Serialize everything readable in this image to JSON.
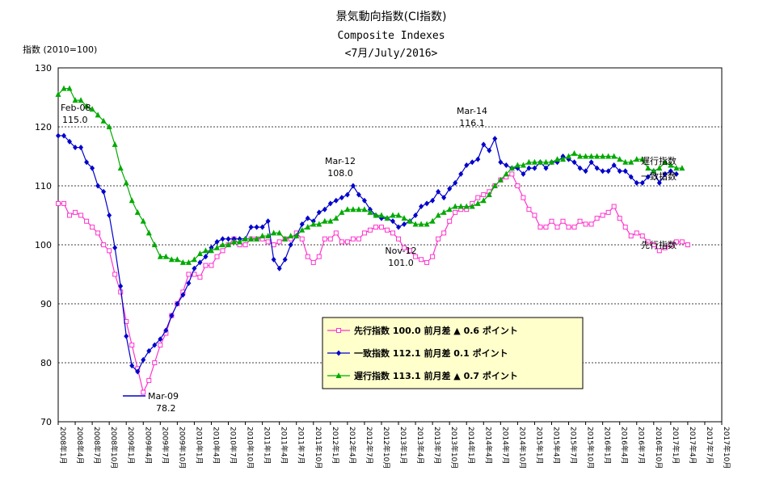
{
  "title": {
    "line1": "景気動向指数(CI指数)",
    "line2": "Composite Indexes",
    "line3": "<7月/July/2016>"
  },
  "chart_data": {
    "type": "line",
    "ylabel": "指数 (2010=100)",
    "ylim": [
      70,
      130
    ],
    "yticks": [
      70,
      80,
      90,
      100,
      110,
      120,
      130
    ],
    "grid": "dotted horizontal at 80, 90, 100, 110, 120",
    "x_start": "2008年1月",
    "x_end": "2017年10月",
    "xtick_labels": [
      "2008年1月",
      "2008年4月",
      "2008年7月",
      "2008年10月",
      "2009年1月",
      "2009年4月",
      "2009年7月",
      "2009年10月",
      "2010年1月",
      "2010年4月",
      "2010年7月",
      "2010年10月",
      "2011年1月",
      "2011年4月",
      "2011年7月",
      "2011年10月",
      "2012年1月",
      "2012年4月",
      "2012年7月",
      "2012年10月",
      "2013年1月",
      "2013年4月",
      "2013年7月",
      "2013年10月",
      "2014年1月",
      "2014年4月",
      "2014年7月",
      "2014年10月",
      "2015年1月",
      "2015年4月",
      "2015年7月",
      "2015年10月",
      "2016年1月",
      "2016年4月",
      "2016年7月",
      "2016年10月",
      "2017年1月",
      "2017年4月",
      "2017年7月",
      "2017年10月"
    ],
    "series": [
      {
        "name": "先行指数",
        "color": "#ff33cc",
        "marker": "square",
        "end_label": "先行指数",
        "values": [
          107,
          107,
          105,
          105.5,
          105,
          104,
          103,
          102,
          100,
          99,
          95,
          92,
          87,
          83,
          79,
          75,
          77,
          80,
          83,
          85,
          88,
          90,
          92,
          95,
          95,
          94.5,
          96.5,
          96.5,
          98,
          99,
          100,
          101,
          100,
          100,
          101,
          101,
          101,
          100.5,
          100,
          100.5,
          101,
          101,
          102,
          101,
          98,
          97,
          98,
          101,
          101,
          102,
          100.5,
          100.5,
          101,
          101,
          102,
          102.5,
          103,
          103,
          102.5,
          102,
          101,
          99.5,
          99,
          98,
          97.5,
          97,
          98,
          101,
          102,
          104,
          105.5,
          106,
          106,
          107,
          108,
          108.5,
          109,
          110,
          111,
          111.5,
          112,
          110,
          108,
          106,
          105,
          103,
          103,
          104,
          103,
          104,
          103,
          103,
          104,
          103.5,
          103.5,
          104.5,
          105,
          105.5,
          106.5,
          104.5,
          103,
          101.5,
          102,
          101.5,
          100.5,
          100,
          99,
          99.5,
          100,
          100.5,
          100.5,
          100
        ]
      },
      {
        "name": "一致指数",
        "color": "#0000cc",
        "marker": "diamond",
        "end_label": "一致指数",
        "values": [
          118.5,
          118.5,
          117.5,
          116.5,
          116.5,
          114,
          113,
          110,
          109,
          105,
          99.5,
          93,
          84.5,
          79.5,
          78.5,
          80.5,
          82,
          83,
          84,
          85.5,
          88,
          90,
          91.5,
          93.5,
          96,
          97,
          98,
          99.5,
          100.5,
          101,
          101,
          101,
          101,
          101,
          103,
          103,
          103,
          104,
          97.5,
          96,
          97.5,
          100,
          101.5,
          103.5,
          104.5,
          104,
          105.5,
          106,
          107,
          107.5,
          108,
          108.5,
          110,
          108.5,
          107.5,
          106,
          105,
          104.5,
          104.5,
          104,
          103,
          103.5,
          104,
          105,
          106.5,
          107,
          107.5,
          109,
          108,
          109.5,
          110.5,
          112,
          113.5,
          114,
          114.5,
          117,
          116,
          118,
          114,
          113.5,
          113,
          113,
          112,
          113,
          113,
          114,
          113,
          114,
          114,
          115,
          114.5,
          114,
          113,
          112.5,
          114,
          113,
          112.5,
          112.5,
          113.5,
          112.5,
          112.5,
          111.5,
          110.5,
          110.5,
          111.5,
          112.5,
          110.5,
          112,
          112.5,
          112
        ]
      },
      {
        "name": "遅行指数",
        "color": "#00aa00",
        "marker": "triangle",
        "end_label": "遅行指数",
        "values": [
          125.5,
          126.5,
          126.5,
          124.5,
          124.5,
          123.5,
          123,
          122,
          121,
          120,
          117,
          113,
          110.5,
          107.5,
          105.5,
          104,
          102,
          100,
          98,
          98,
          97.5,
          97.5,
          97,
          97,
          97.5,
          98.5,
          99,
          99,
          99.5,
          100,
          100,
          100.5,
          100.5,
          101,
          101,
          101,
          101.5,
          101.5,
          102,
          102,
          101,
          101.5,
          101.5,
          102.5,
          103,
          103.5,
          103.5,
          104,
          104,
          104.5,
          105.5,
          106,
          106,
          106,
          106,
          105.5,
          105,
          105,
          104.5,
          105,
          105,
          104.5,
          104,
          103.5,
          103.5,
          103.5,
          104,
          105,
          105.5,
          106,
          106.5,
          106.5,
          106.5,
          106.5,
          107,
          107.5,
          108.5,
          110,
          111,
          112,
          113,
          113.5,
          113.5,
          114,
          114,
          114,
          114,
          114,
          114.5,
          114.5,
          115,
          115.5,
          115,
          115,
          115,
          115,
          115,
          115,
          115,
          114.5,
          114,
          114,
          114.5,
          114.5,
          113,
          112.5,
          113,
          114,
          113.5,
          113,
          113
        ]
      }
    ],
    "annotations": [
      {
        "label": "Feb-08",
        "value": "115.0"
      },
      {
        "label": "Mar-09",
        "value": "78.2"
      },
      {
        "label": "Mar-12",
        "value": "108.0"
      },
      {
        "label": "Nov-12",
        "value": "101.0"
      },
      {
        "label": "Mar-14",
        "value": "116.1"
      }
    ],
    "legend": {
      "placement": "center-bottom",
      "rows": [
        {
          "series": "先行指数",
          "text": "先行指数  100.0  前月差 ▲ 0.6 ポイント"
        },
        {
          "series": "一致指数",
          "text": "一致指数 112.1  前月差 0.1  ポイント"
        },
        {
          "series": "遅行指数",
          "text": "遅行指数 113.1  前月差 ▲ 0.7 ポイント"
        }
      ],
      "background": "#ffffcc"
    }
  }
}
